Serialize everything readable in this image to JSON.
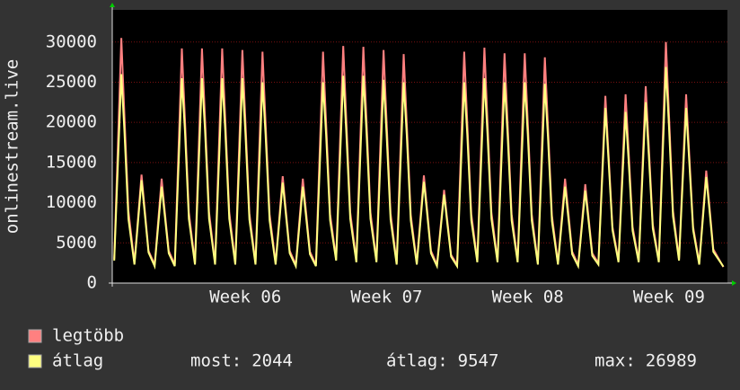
{
  "chart_data": {
    "type": "line",
    "y_label": "onlinestream.live",
    "xlim": [
      0,
      30.5
    ],
    "ylim": [
      0,
      34000
    ],
    "yticks": [
      0,
      5000,
      10000,
      15000,
      20000,
      25000,
      30000
    ],
    "xticks": [
      {
        "value": 6.6,
        "label": "Week 06"
      },
      {
        "value": 13.6,
        "label": "Week 07"
      },
      {
        "value": 20.6,
        "label": "Week 08"
      },
      {
        "value": 27.6,
        "label": "Week 09"
      }
    ],
    "grid": true,
    "x": [
      0.1,
      0.45,
      0.6,
      0.8,
      1.1,
      1.45,
      1.6,
      1.8,
      2.1,
      2.45,
      2.6,
      2.8,
      3.1,
      3.45,
      3.6,
      3.8,
      4.1,
      4.45,
      4.6,
      4.8,
      5.1,
      5.45,
      5.6,
      5.8,
      6.1,
      6.45,
      6.6,
      6.8,
      7.1,
      7.45,
      7.6,
      7.8,
      8.1,
      8.45,
      8.6,
      8.8,
      9.1,
      9.45,
      9.6,
      9.8,
      10.1,
      10.45,
      10.6,
      10.8,
      11.1,
      11.45,
      11.6,
      11.8,
      12.1,
      12.45,
      12.6,
      12.8,
      13.1,
      13.45,
      13.6,
      13.8,
      14.1,
      14.45,
      14.6,
      14.8,
      15.1,
      15.45,
      15.6,
      15.8,
      16.1,
      16.45,
      16.6,
      16.8,
      17.1,
      17.45,
      17.6,
      17.8,
      18.1,
      18.45,
      18.6,
      18.8,
      19.1,
      19.45,
      19.6,
      19.8,
      20.1,
      20.45,
      20.6,
      20.8,
      21.1,
      21.45,
      21.6,
      21.8,
      22.1,
      22.45,
      22.6,
      22.8,
      23.1,
      23.45,
      23.6,
      23.8,
      24.1,
      24.45,
      24.6,
      24.8,
      25.1,
      25.45,
      25.6,
      25.8,
      26.1,
      26.45,
      26.6,
      26.8,
      27.1,
      27.45,
      27.6,
      27.8,
      28.1,
      28.45,
      28.6,
      28.8,
      29.1,
      29.45,
      29.6,
      29.8,
      30.3
    ],
    "series": [
      {
        "name": "legtöbb",
        "color": "#ff8080",
        "values": [
          3000,
          30500,
          21000,
          9000,
          2500,
          13500,
          9500,
          4000,
          2300,
          13000,
          9000,
          4000,
          2300,
          29200,
          20500,
          8800,
          2500,
          29200,
          20500,
          8800,
          2500,
          29200,
          20500,
          8800,
          2500,
          29000,
          20300,
          8700,
          2500,
          28800,
          20000,
          8600,
          2500,
          13300,
          9300,
          4000,
          2300,
          13000,
          9100,
          3900,
          2300,
          28800,
          20000,
          8600,
          3000,
          29500,
          20600,
          8800,
          2800,
          29400,
          20500,
          8800,
          2800,
          29000,
          20300,
          8700,
          2500,
          28500,
          20000,
          8500,
          2500,
          13400,
          9400,
          4000,
          2300,
          11600,
          8100,
          3500,
          2300,
          28800,
          20000,
          8600,
          2800,
          29300,
          20500,
          8800,
          2800,
          28600,
          20000,
          8600,
          2800,
          28600,
          20000,
          8600,
          2500,
          28100,
          19700,
          8400,
          2500,
          13000,
          9100,
          3900,
          2300,
          12300,
          8600,
          3700,
          2500,
          23300,
          16300,
          7000,
          2800,
          23500,
          16400,
          7000,
          2800,
          24500,
          17100,
          7300,
          2800,
          30000,
          21000,
          9000,
          3000,
          23500,
          16400,
          7000,
          2500,
          14000,
          9800,
          4200,
          2000
        ]
      },
      {
        "name": "átlag",
        "color": "#ffff80",
        "values": [
          2800,
          26000,
          19000,
          8000,
          2300,
          12800,
          9000,
          3800,
          2100,
          12000,
          8500,
          3700,
          2100,
          25500,
          19000,
          8000,
          2300,
          25500,
          19000,
          8000,
          2300,
          25500,
          19000,
          8000,
          2300,
          25500,
          18800,
          7900,
          2300,
          25000,
          18500,
          7800,
          2300,
          12500,
          8800,
          3700,
          2100,
          12000,
          8500,
          3600,
          2100,
          25000,
          18500,
          7800,
          2800,
          25800,
          19000,
          8000,
          2600,
          25800,
          19000,
          8000,
          2600,
          25300,
          18700,
          7900,
          2300,
          25000,
          18500,
          7800,
          2300,
          12600,
          8900,
          3700,
          2100,
          11000,
          7700,
          3300,
          2100,
          25000,
          18500,
          7800,
          2600,
          25500,
          18800,
          8000,
          2600,
          25000,
          18500,
          7800,
          2600,
          25000,
          18500,
          7800,
          2300,
          24800,
          18300,
          7700,
          2300,
          12000,
          8400,
          3600,
          2100,
          11500,
          8100,
          3400,
          2300,
          21800,
          15500,
          6600,
          2600,
          21300,
          15200,
          6500,
          2600,
          22500,
          16000,
          6800,
          2600,
          26900,
          19500,
          8300,
          2800,
          21800,
          15500,
          6600,
          2300,
          13200,
          9300,
          3900,
          2044
        ]
      }
    ],
    "stats": [
      {
        "label": "most:",
        "value": 2044
      },
      {
        "label": "átlag:",
        "value": 9547
      },
      {
        "label": "max:",
        "value": 26989
      }
    ]
  }
}
